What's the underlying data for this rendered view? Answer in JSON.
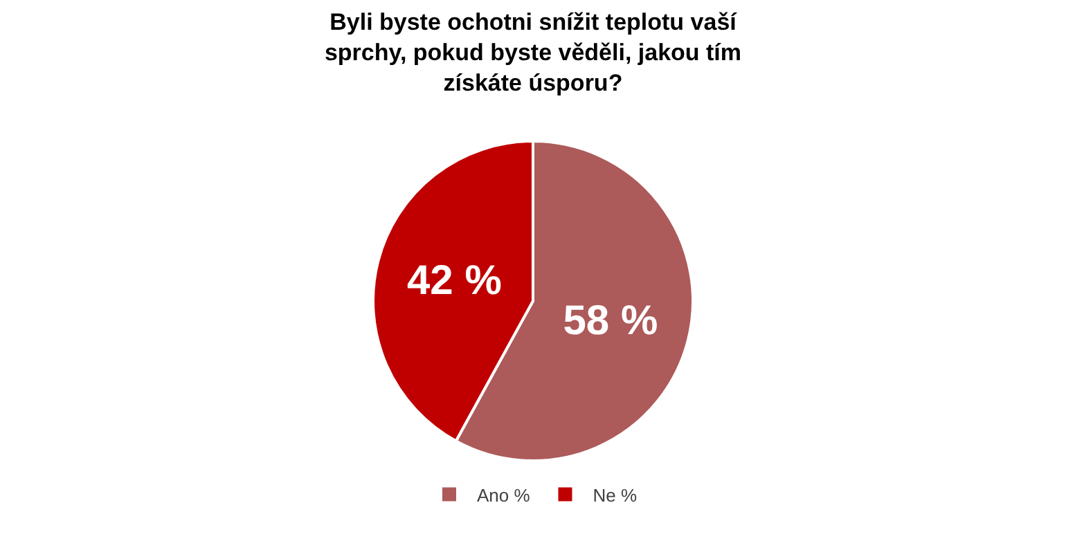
{
  "chart_data": {
    "type": "pie",
    "title": "Byli byste ochotni snížit teplotu vaší sprchy, pokud byste věděli, jakou tím získáte úsporu?",
    "categories": [
      "Ano %",
      "Ne %"
    ],
    "values": [
      58,
      42
    ],
    "colors": [
      "#ad5a5a",
      "#c00000"
    ],
    "value_labels": [
      "58 %",
      "42 %"
    ],
    "legend": "bottom"
  }
}
